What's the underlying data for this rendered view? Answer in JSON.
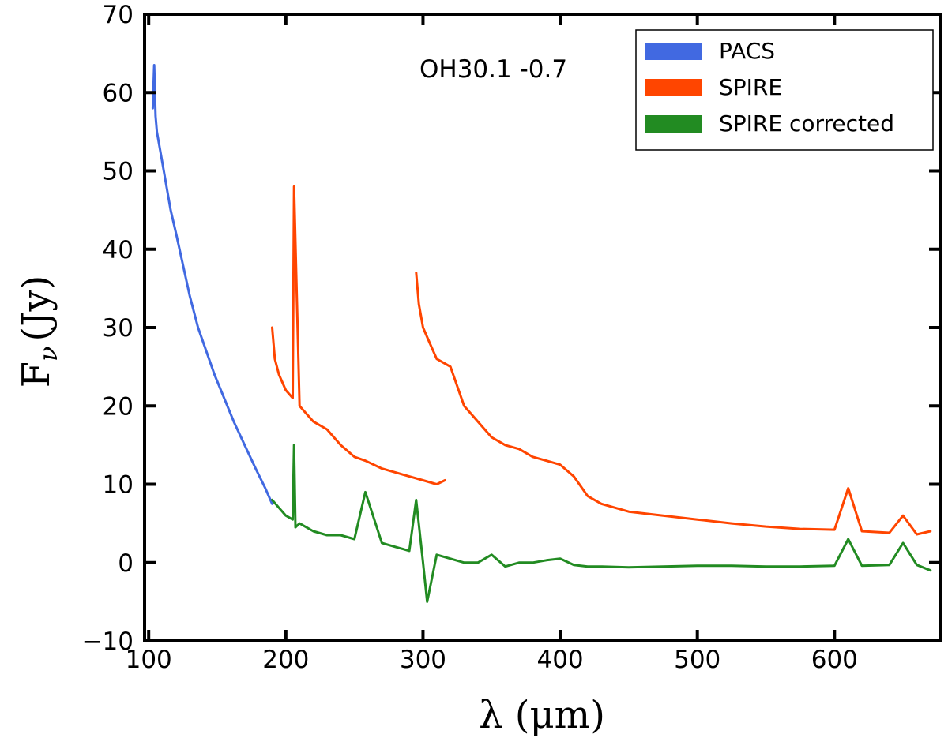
{
  "chart_data": {
    "type": "line",
    "title": "",
    "annotation": "OH30.1 -0.7",
    "xlabel": "λ (μm)",
    "ylabel_main": "F",
    "ylabel_sub": "ν",
    "ylabel_unit": "(Jy)",
    "xlim": [
      97,
      677
    ],
    "ylim": [
      -10,
      70
    ],
    "xticks": [
      100,
      200,
      300,
      400,
      500,
      600
    ],
    "xtick_labels": [
      "100",
      "200",
      "300",
      "400",
      "500",
      "600"
    ],
    "yticks": [
      -10,
      0,
      10,
      20,
      30,
      40,
      50,
      60,
      70
    ],
    "ytick_labels": [
      "−10",
      "0",
      "10",
      "20",
      "30",
      "40",
      "50",
      "60",
      "70"
    ],
    "grid": false,
    "legend_position": "top-right",
    "series": [
      {
        "name": "PACS",
        "color": "#4169e1",
        "x": [
          103,
          104,
          105,
          106,
          108,
          110,
          113,
          116,
          120,
          125,
          130,
          136,
          142,
          148,
          155,
          162,
          170,
          178,
          185,
          190
        ],
        "y": [
          58,
          63.5,
          57,
          55,
          53,
          51,
          48,
          45,
          42,
          38,
          34,
          30,
          27,
          24,
          21,
          18,
          15,
          12,
          9.5,
          7.5
        ]
      },
      {
        "name": "SPIRE",
        "color": "#ff4500",
        "x": [
          190,
          192,
          195,
          200,
          205,
          206,
          210,
          220,
          230,
          240,
          250,
          258,
          270,
          280,
          290,
          300,
          310,
          316,
          295,
          297,
          300,
          305,
          310,
          320,
          330,
          340,
          350,
          360,
          370,
          380,
          390,
          400,
          410,
          420,
          430,
          450,
          475,
          500,
          525,
          550,
          575,
          600,
          610,
          620,
          640,
          650,
          660,
          670
        ],
        "y": [
          30,
          26,
          24,
          22,
          21,
          48,
          20,
          18,
          17,
          15,
          13.5,
          13,
          12,
          11.5,
          11,
          10.5,
          10,
          10.5,
          37,
          33,
          30,
          28,
          26,
          25,
          20,
          18,
          16,
          15,
          14.5,
          13.5,
          13,
          12.5,
          11,
          8.5,
          7.5,
          6.5,
          6,
          5.5,
          5,
          4.6,
          4.3,
          4.2,
          9.5,
          4,
          3.8,
          6,
          3.6,
          4
        ]
      },
      {
        "name": "SPIRE corrected",
        "color": "#228b22",
        "x": [
          190,
          195,
          200,
          205,
          206,
          207,
          210,
          220,
          230,
          240,
          250,
          258,
          270,
          280,
          290,
          295,
          300,
          303,
          310,
          320,
          330,
          340,
          350,
          360,
          370,
          380,
          390,
          400,
          410,
          420,
          430,
          450,
          475,
          500,
          525,
          550,
          575,
          600,
          610,
          620,
          640,
          650,
          660,
          670
        ],
        "y": [
          8,
          7,
          6,
          5.5,
          15,
          4.5,
          5,
          4,
          3.5,
          3.5,
          3,
          9,
          2.5,
          2,
          1.5,
          8,
          0,
          -5,
          1,
          0.5,
          0,
          0,
          1,
          -0.5,
          0,
          0,
          0.3,
          0.5,
          -0.3,
          -0.5,
          -0.5,
          -0.6,
          -0.5,
          -0.4,
          -0.4,
          -0.5,
          -0.5,
          -0.4,
          3,
          -0.4,
          -0.3,
          2.5,
          -0.3,
          -1
        ]
      }
    ]
  }
}
